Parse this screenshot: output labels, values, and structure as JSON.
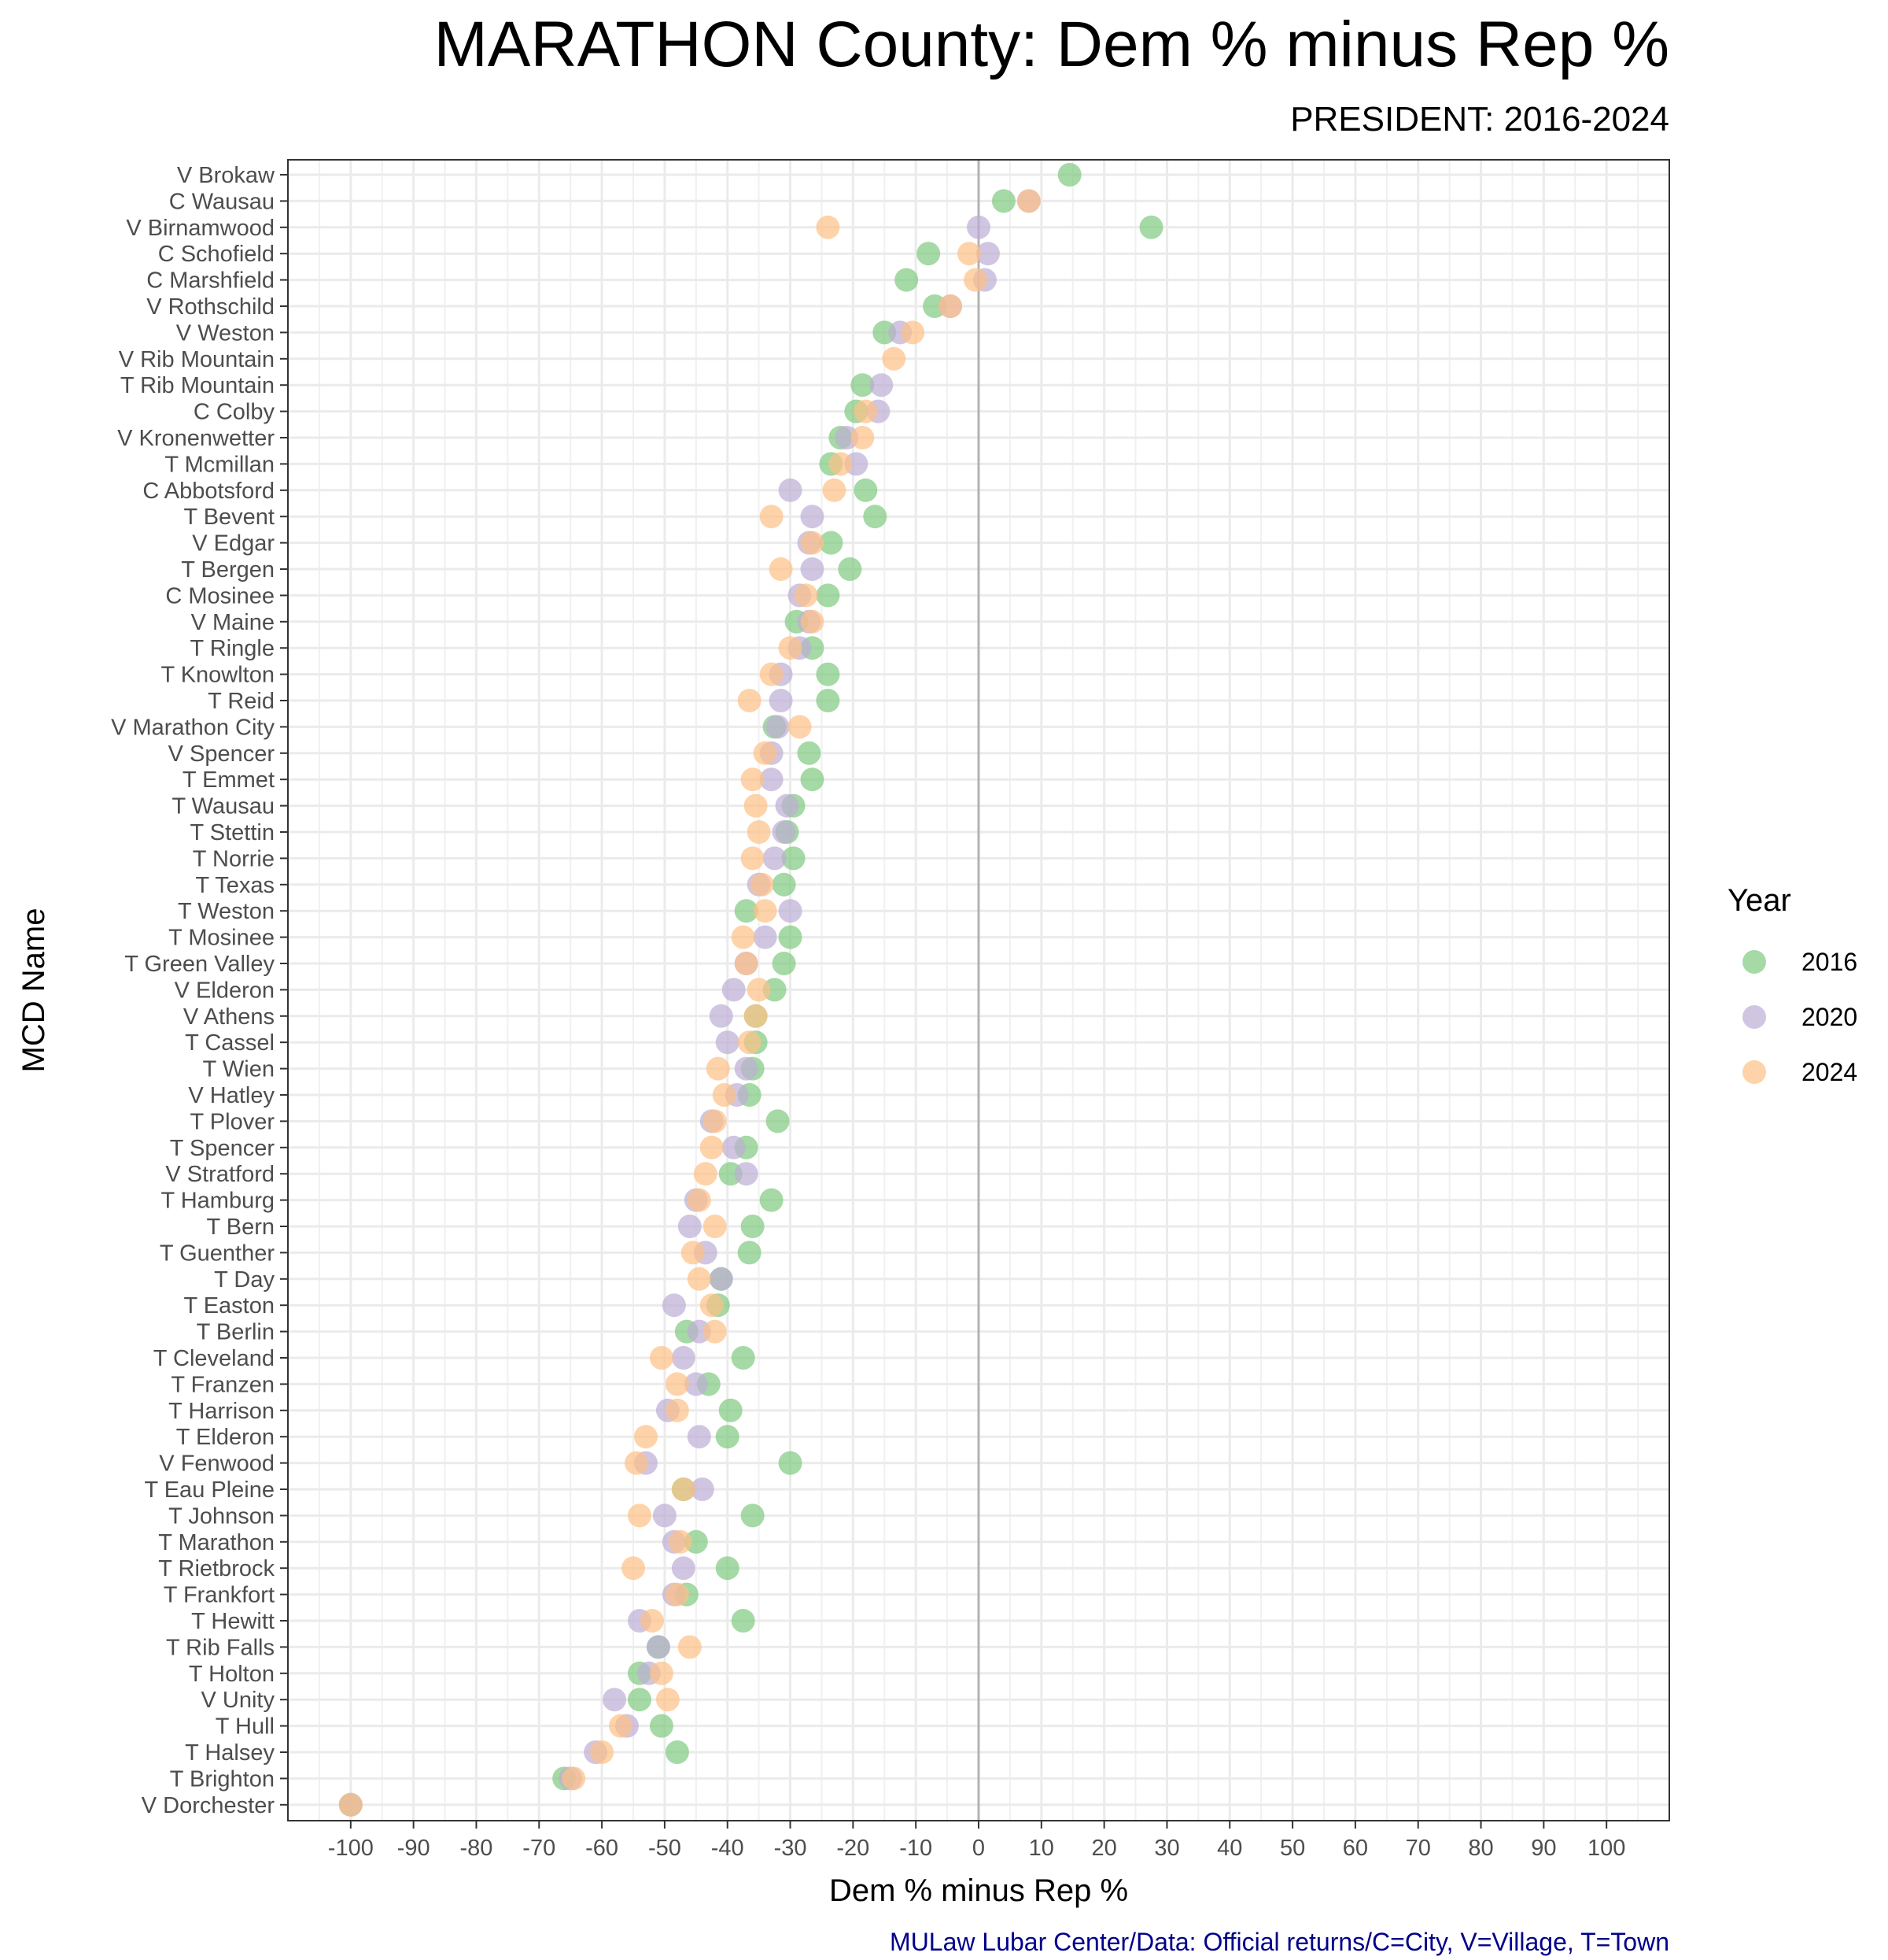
{
  "chart_data": {
    "type": "scatter",
    "title": "MARATHON County: Dem % minus Rep %",
    "subtitle": "PRESIDENT: 2016-2024",
    "xlabel": "Dem % minus Rep %",
    "ylabel": "MCD Name",
    "caption": "MULaw Lubar Center/Data: Official returns/C=City, V=Village, T=Town",
    "xlim": [
      -110,
      110
    ],
    "x_ticks": [
      -100,
      -90,
      -80,
      -70,
      -60,
      -50,
      -40,
      -30,
      -20,
      -10,
      0,
      10,
      20,
      30,
      40,
      50,
      60,
      70,
      80,
      90,
      100
    ],
    "x_tick_labels": [
      "-100",
      "-90",
      "-80",
      "-70",
      "-60",
      "-50",
      "-40",
      "-30",
      "-20",
      "-10",
      "0",
      "10",
      "20",
      "30",
      "40",
      "50",
      "60",
      "70",
      "80",
      "90",
      "100"
    ],
    "legend": {
      "title": "Year",
      "position": "right",
      "entries": [
        {
          "label": "2016",
          "color": "#7fc97f"
        },
        {
          "label": "2020",
          "color": "#beaed4"
        },
        {
          "label": "2024",
          "color": "#fdc086"
        }
      ]
    },
    "categories": [
      "V Brokaw",
      "C Wausau",
      "V Birnamwood",
      "C Schofield",
      "C Marshfield",
      "V Rothschild",
      "V Weston",
      "V Rib Mountain",
      "T Rib Mountain",
      "C Colby",
      "V Kronenwetter",
      "T Mcmillan",
      "C Abbotsford",
      "T Bevent",
      "V Edgar",
      "T Bergen",
      "C Mosinee",
      "V Maine",
      "T Ringle",
      "T Knowlton",
      "T Reid",
      "V Marathon City",
      "V Spencer",
      "T Emmet",
      "T Wausau",
      "T Stettin",
      "T Norrie",
      "T Texas",
      "T Weston",
      "T Mosinee",
      "T Green Valley",
      "V Elderon",
      "V Athens",
      "T Cassel",
      "T Wien",
      "V Hatley",
      "T Plover",
      "T Spencer",
      "V Stratford",
      "T Hamburg",
      "T Bern",
      "T Guenther",
      "T Day",
      "T Easton",
      "T Berlin",
      "T Cleveland",
      "T Franzen",
      "T Harrison",
      "T Elderon",
      "V Fenwood",
      "T Eau Pleine",
      "T Johnson",
      "T Marathon",
      "T Rietbrock",
      "T Frankfort",
      "T Hewitt",
      "T Rib Falls",
      "T Holton",
      "V Unity",
      "T Hull",
      "T Halsey",
      "T Brighton",
      "V Dorchester"
    ],
    "series": [
      {
        "name": "2016",
        "values": [
          14.5,
          4,
          27.5,
          -8,
          -11.5,
          -7,
          -15,
          null,
          -18.5,
          -19.5,
          -22,
          -23.5,
          -18,
          -16.5,
          -23.5,
          -20.5,
          -24,
          -29,
          -26.5,
          -24,
          -24,
          -32.5,
          -27,
          -26.5,
          -29.5,
          -30.5,
          -29.5,
          -31,
          -37,
          -30,
          -31,
          -32.5,
          -35.5,
          -35.5,
          -36,
          -36.5,
          -32,
          -37,
          -39.5,
          -33,
          -36,
          -36.5,
          -41,
          -41.5,
          -46.5,
          -37.5,
          -43,
          -39.5,
          -40,
          -30,
          -47,
          -36,
          -45,
          -40,
          -46.5,
          -37.5,
          -51,
          -54,
          -54,
          -50.5,
          -48,
          -66,
          -100
        ]
      },
      {
        "name": "2020",
        "values": [
          null,
          8,
          0,
          1.5,
          1,
          -4.5,
          -12.5,
          null,
          -15.5,
          -16,
          -21,
          -19.5,
          -30,
          -26.5,
          -27,
          -26.5,
          -28.5,
          -27,
          -28.5,
          -31.5,
          -31.5,
          -32,
          -33,
          -33,
          -30.5,
          -31,
          -32.5,
          -35,
          -30,
          -34,
          -37,
          -39,
          -41,
          -40,
          -37,
          -38.5,
          -42.5,
          -39,
          -37,
          -45,
          -46,
          -43.5,
          -41,
          -48.5,
          -44.5,
          -47,
          -45,
          -49.5,
          -44.5,
          -53,
          -44,
          -50,
          -48.5,
          -47,
          -48.5,
          -54,
          -51,
          -52.5,
          -58,
          -56,
          -61,
          -65,
          -100
        ]
      },
      {
        "name": "2024",
        "values": [
          null,
          8,
          -24,
          -1.5,
          -0.5,
          -4.5,
          -10.5,
          -13.5,
          null,
          -18,
          -18.5,
          -22,
          -23,
          -33,
          -26.5,
          -31.5,
          -27.5,
          -26.5,
          -30,
          -33,
          -36.5,
          -28.5,
          -34,
          -36,
          -35.5,
          -35,
          -36,
          -34.5,
          -34,
          -37.5,
          -37,
          -35,
          -35.5,
          -36.5,
          -41.5,
          -40.5,
          -42,
          -42.5,
          -43.5,
          -44.5,
          -42,
          -45.5,
          -44.5,
          -42.5,
          -42,
          -50.5,
          -48,
          -48,
          -53,
          -54.5,
          -47,
          -54,
          -47.5,
          -55,
          -48,
          -52,
          -46,
          -50.5,
          -49.5,
          -57,
          -60,
          -64.5,
          -100
        ]
      }
    ]
  }
}
